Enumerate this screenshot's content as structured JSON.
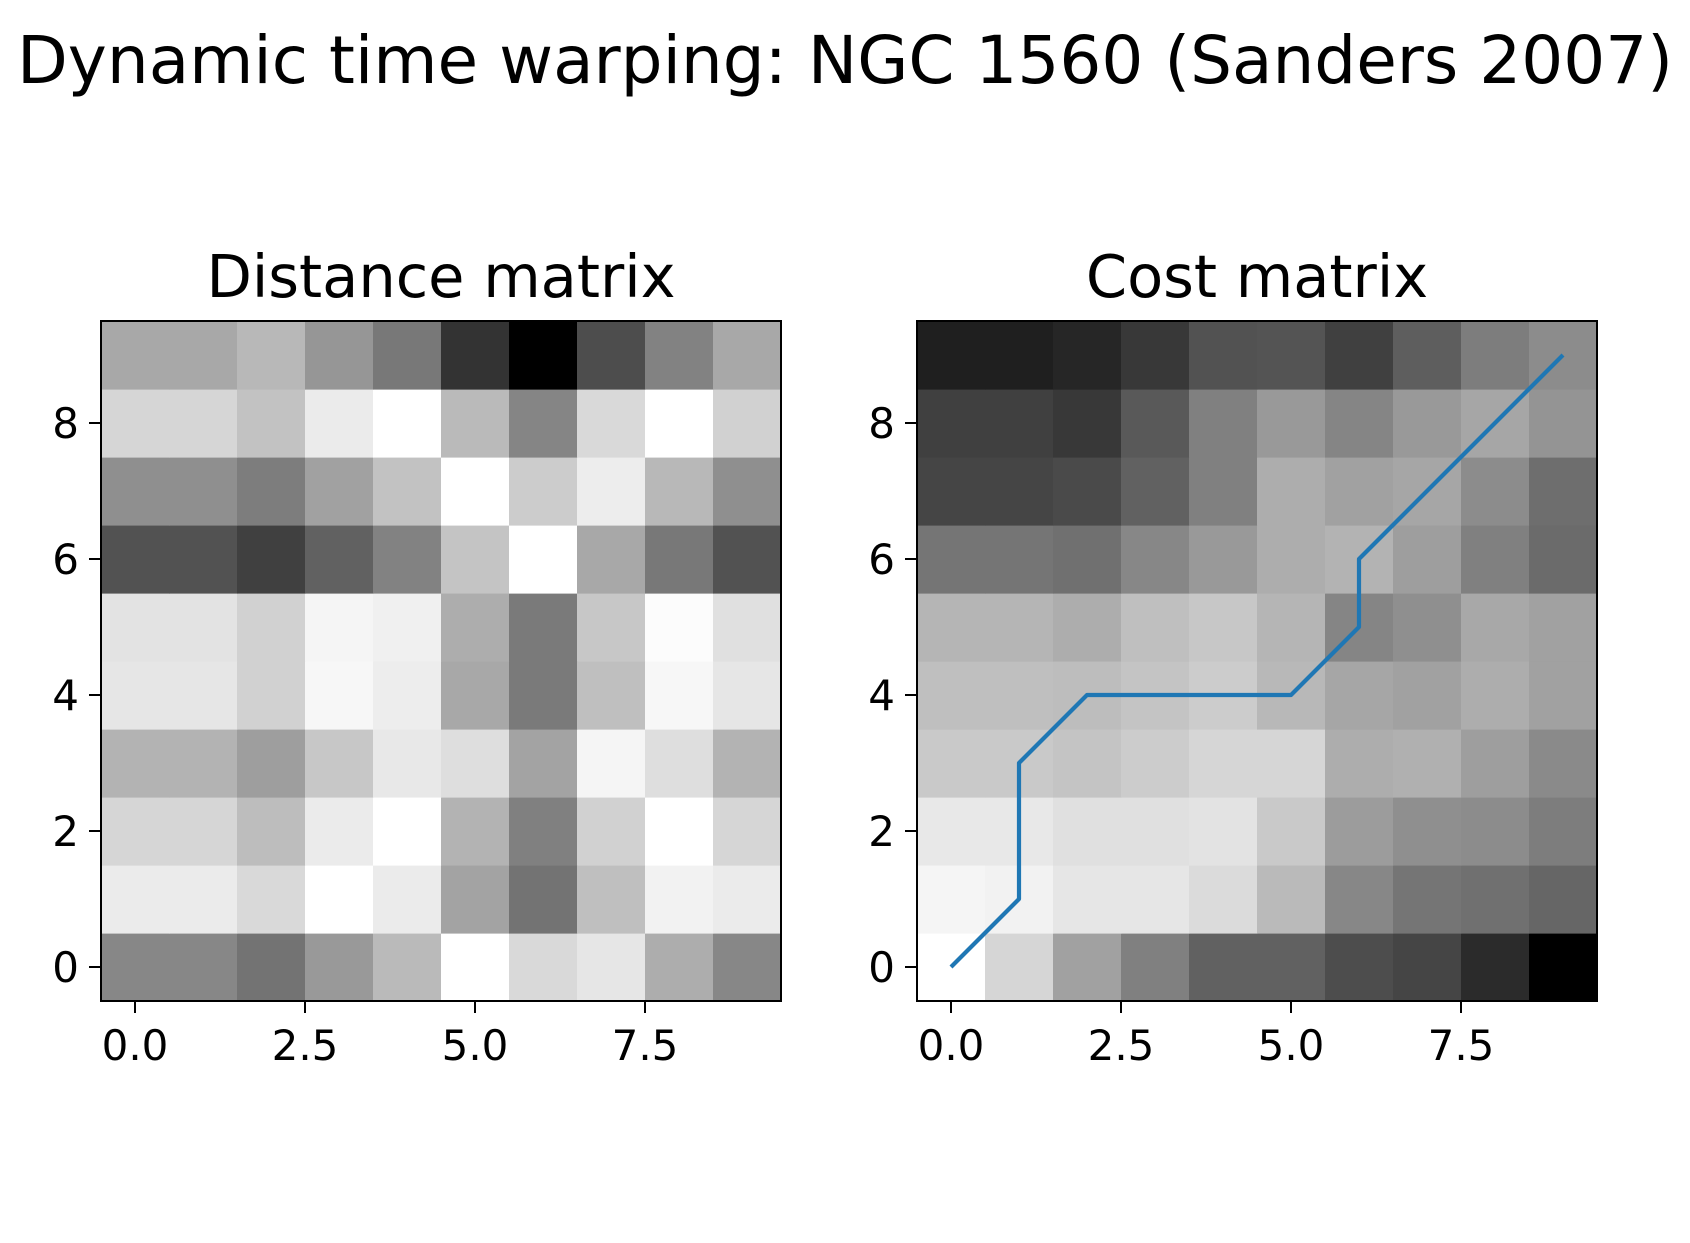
{
  "suptitle": "Dynamic time warping: NGC 1560 (Sanders 2007)",
  "colors": {
    "path": "#1f77b4",
    "axes": "#000000",
    "background": "#ffffff",
    "colormap": "gray"
  },
  "chart_data": [
    {
      "type": "heatmap",
      "title": "Distance matrix",
      "xlabel": "",
      "ylabel": "",
      "colormap": "gray",
      "origin": "lower",
      "xlim": [
        -0.5,
        9.5
      ],
      "ylim": [
        -0.5,
        9.5
      ],
      "xticks": [
        0.0,
        2.5,
        5.0,
        7.5
      ],
      "xtick_labels": [
        "0.0",
        "2.5",
        "5.0",
        "7.5"
      ],
      "yticks": [
        0,
        2,
        4,
        6,
        8
      ],
      "ytick_labels": [
        "0",
        "2",
        "4",
        "6",
        "8"
      ],
      "grid": false,
      "values": [
        [
          0.53,
          0.53,
          0.45,
          0.6,
          0.73,
          1.0,
          0.85,
          0.9,
          0.68,
          0.53
        ],
        [
          0.92,
          0.92,
          0.85,
          1.0,
          0.92,
          0.64,
          0.45,
          0.75,
          0.95,
          0.92
        ],
        [
          0.84,
          0.84,
          0.74,
          0.92,
          1.0,
          0.7,
          0.5,
          0.82,
          1.0,
          0.84
        ],
        [
          0.7,
          0.7,
          0.62,
          0.78,
          0.91,
          0.87,
          0.64,
          0.96,
          0.87,
          0.7
        ],
        [
          0.9,
          0.9,
          0.82,
          0.97,
          0.93,
          0.66,
          0.48,
          0.75,
          0.97,
          0.9
        ],
        [
          0.89,
          0.89,
          0.82,
          0.96,
          0.94,
          0.68,
          0.48,
          0.78,
          0.99,
          0.88
        ],
        [
          0.32,
          0.32,
          0.25,
          0.38,
          0.51,
          0.77,
          1.0,
          0.66,
          0.47,
          0.32
        ],
        [
          0.56,
          0.56,
          0.49,
          0.63,
          0.76,
          1.0,
          0.8,
          0.93,
          0.72,
          0.56
        ],
        [
          0.84,
          0.84,
          0.76,
          0.92,
          1.0,
          0.73,
          0.52,
          0.85,
          1.0,
          0.82
        ],
        [
          0.66,
          0.66,
          0.72,
          0.59,
          0.47,
          0.2,
          0.0,
          0.3,
          0.51,
          0.66
        ]
      ]
    },
    {
      "type": "heatmap",
      "title": "Cost matrix",
      "xlabel": "",
      "ylabel": "",
      "colormap": "gray",
      "origin": "lower",
      "xlim": [
        -0.5,
        9.5
      ],
      "ylim": [
        -0.5,
        9.5
      ],
      "xticks": [
        0.0,
        2.5,
        5.0,
        7.5
      ],
      "xtick_labels": [
        "0.0",
        "2.5",
        "5.0",
        "7.5"
      ],
      "yticks": [
        0,
        2,
        4,
        6,
        8
      ],
      "ytick_labels": [
        "0",
        "2",
        "4",
        "6",
        "8"
      ],
      "grid": false,
      "values": [
        [
          1.0,
          0.84,
          0.63,
          0.5,
          0.38,
          0.38,
          0.3,
          0.27,
          0.17,
          0.0
        ],
        [
          0.96,
          0.95,
          0.9,
          0.9,
          0.86,
          0.73,
          0.53,
          0.46,
          0.44,
          0.4
        ],
        [
          0.91,
          0.91,
          0.88,
          0.88,
          0.89,
          0.79,
          0.61,
          0.56,
          0.55,
          0.49
        ],
        [
          0.79,
          0.79,
          0.77,
          0.8,
          0.84,
          0.84,
          0.68,
          0.69,
          0.62,
          0.54
        ],
        [
          0.75,
          0.75,
          0.74,
          0.77,
          0.8,
          0.72,
          0.65,
          0.63,
          0.68,
          0.63
        ],
        [
          0.71,
          0.71,
          0.68,
          0.75,
          0.78,
          0.71,
          0.52,
          0.56,
          0.66,
          0.63
        ],
        [
          0.46,
          0.46,
          0.44,
          0.53,
          0.6,
          0.68,
          0.7,
          0.62,
          0.5,
          0.42
        ],
        [
          0.27,
          0.27,
          0.29,
          0.38,
          0.5,
          0.68,
          0.63,
          0.65,
          0.55,
          0.43
        ],
        [
          0.25,
          0.25,
          0.22,
          0.35,
          0.5,
          0.6,
          0.52,
          0.6,
          0.65,
          0.58
        ],
        [
          0.12,
          0.12,
          0.15,
          0.22,
          0.32,
          0.33,
          0.25,
          0.37,
          0.49,
          0.55
        ]
      ],
      "path": {
        "x": [
          0,
          1,
          1,
          2,
          3,
          4,
          5,
          6,
          6,
          7,
          8,
          9
        ],
        "y": [
          0,
          1,
          3,
          4,
          4,
          4,
          4,
          5,
          6,
          7,
          8,
          9
        ]
      }
    }
  ]
}
